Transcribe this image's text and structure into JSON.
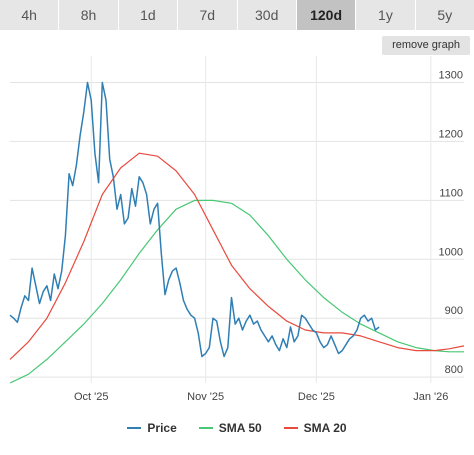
{
  "range_buttons": [
    {
      "label": "4h"
    },
    {
      "label": "8h"
    },
    {
      "label": "1d"
    },
    {
      "label": "7d"
    },
    {
      "label": "30d"
    },
    {
      "label": "120d",
      "active": true
    },
    {
      "label": "1y"
    },
    {
      "label": "5y"
    }
  ],
  "remove_graph_label": "remove graph",
  "chart_data": {
    "type": "line",
    "y_ticks": [
      800,
      900,
      1000,
      1100,
      1200,
      1300
    ],
    "ylim": [
      790,
      1345
    ],
    "x_ticks": [
      {
        "label": "Oct '25",
        "day": 22
      },
      {
        "label": "Nov '25",
        "day": 53
      },
      {
        "label": "Dec '25",
        "day": 83
      },
      {
        "label": "Jan '26",
        "day": 114
      }
    ],
    "xlim": [
      0,
      123
    ],
    "grid": true,
    "legend_placement": "bottom",
    "series": [
      {
        "name": "Price",
        "color": "#2f7fb5",
        "points": [
          [
            0,
            905
          ],
          [
            1,
            900
          ],
          [
            2,
            893
          ],
          [
            3,
            918
          ],
          [
            4,
            938
          ],
          [
            5,
            930
          ],
          [
            6,
            985
          ],
          [
            7,
            955
          ],
          [
            8,
            925
          ],
          [
            9,
            945
          ],
          [
            10,
            955
          ],
          [
            11,
            930
          ],
          [
            12,
            975
          ],
          [
            13,
            950
          ],
          [
            14,
            980
          ],
          [
            15,
            1040
          ],
          [
            16,
            1145
          ],
          [
            17,
            1125
          ],
          [
            18,
            1160
          ],
          [
            19,
            1210
          ],
          [
            20,
            1250
          ],
          [
            21,
            1300
          ],
          [
            22,
            1270
          ],
          [
            23,
            1180
          ],
          [
            24,
            1130
          ],
          [
            25,
            1300
          ],
          [
            26,
            1270
          ],
          [
            27,
            1170
          ],
          [
            28,
            1140
          ],
          [
            29,
            1085
          ],
          [
            30,
            1110
          ],
          [
            31,
            1060
          ],
          [
            32,
            1070
          ],
          [
            33,
            1120
          ],
          [
            34,
            1090
          ],
          [
            35,
            1140
          ],
          [
            36,
            1130
          ],
          [
            37,
            1110
          ],
          [
            38,
            1060
          ],
          [
            39,
            1085
          ],
          [
            40,
            1095
          ],
          [
            41,
            1010
          ],
          [
            42,
            940
          ],
          [
            43,
            965
          ],
          [
            44,
            980
          ],
          [
            45,
            985
          ],
          [
            46,
            960
          ],
          [
            47,
            930
          ],
          [
            48,
            915
          ],
          [
            49,
            905
          ],
          [
            50,
            900
          ],
          [
            51,
            875
          ],
          [
            52,
            835
          ],
          [
            53,
            840
          ],
          [
            54,
            850
          ],
          [
            55,
            900
          ],
          [
            56,
            895
          ],
          [
            57,
            860
          ],
          [
            58,
            835
          ],
          [
            59,
            850
          ],
          [
            60,
            935
          ],
          [
            61,
            890
          ],
          [
            62,
            900
          ],
          [
            63,
            880
          ],
          [
            64,
            895
          ],
          [
            65,
            905
          ],
          [
            66,
            890
          ],
          [
            67,
            895
          ],
          [
            68,
            880
          ],
          [
            69,
            870
          ],
          [
            70,
            860
          ],
          [
            71,
            870
          ],
          [
            72,
            855
          ],
          [
            73,
            845
          ],
          [
            74,
            865
          ],
          [
            75,
            850
          ],
          [
            76,
            885
          ],
          [
            77,
            860
          ],
          [
            78,
            870
          ],
          [
            79,
            905
          ],
          [
            80,
            900
          ],
          [
            81,
            890
          ],
          [
            82,
            880
          ],
          [
            83,
            875
          ],
          [
            84,
            860
          ],
          [
            85,
            850
          ],
          [
            86,
            855
          ],
          [
            87,
            870
          ],
          [
            88,
            855
          ],
          [
            89,
            840
          ],
          [
            90,
            845
          ],
          [
            91,
            855
          ],
          [
            92,
            865
          ],
          [
            93,
            870
          ],
          [
            94,
            880
          ],
          [
            95,
            900
          ],
          [
            96,
            905
          ],
          [
            97,
            895
          ],
          [
            98,
            900
          ],
          [
            99,
            880
          ],
          [
            100,
            885
          ]
        ]
      },
      {
        "name": "SMA 50",
        "color": "#48c774",
        "points": [
          [
            0,
            790
          ],
          [
            5,
            805
          ],
          [
            10,
            830
          ],
          [
            15,
            860
          ],
          [
            20,
            890
          ],
          [
            25,
            925
          ],
          [
            30,
            965
          ],
          [
            35,
            1010
          ],
          [
            40,
            1050
          ],
          [
            45,
            1085
          ],
          [
            50,
            1100
          ],
          [
            55,
            1100
          ],
          [
            60,
            1095
          ],
          [
            65,
            1075
          ],
          [
            70,
            1040
          ],
          [
            75,
            1000
          ],
          [
            80,
            965
          ],
          [
            85,
            935
          ],
          [
            90,
            910
          ],
          [
            95,
            890
          ],
          [
            100,
            875
          ],
          [
            105,
            860
          ],
          [
            110,
            850
          ],
          [
            115,
            845
          ],
          [
            119,
            843
          ],
          [
            123,
            843
          ]
        ]
      },
      {
        "name": "SMA 20",
        "color": "#e84a3e",
        "points": [
          [
            0,
            830
          ],
          [
            5,
            860
          ],
          [
            10,
            900
          ],
          [
            15,
            960
          ],
          [
            20,
            1030
          ],
          [
            25,
            1110
          ],
          [
            30,
            1155
          ],
          [
            35,
            1180
          ],
          [
            40,
            1175
          ],
          [
            45,
            1150
          ],
          [
            50,
            1110
          ],
          [
            55,
            1050
          ],
          [
            60,
            990
          ],
          [
            65,
            950
          ],
          [
            70,
            920
          ],
          [
            75,
            895
          ],
          [
            80,
            880
          ],
          [
            85,
            875
          ],
          [
            90,
            875
          ],
          [
            95,
            870
          ],
          [
            100,
            860
          ],
          [
            105,
            850
          ],
          [
            110,
            845
          ],
          [
            115,
            845
          ],
          [
            119,
            848
          ],
          [
            123,
            853
          ]
        ]
      }
    ]
  },
  "legend": [
    {
      "label": "Price",
      "color": "#2f7fb5"
    },
    {
      "label": "SMA 50",
      "color": "#48c774"
    },
    {
      "label": "SMA 20",
      "color": "#e84a3e"
    }
  ]
}
